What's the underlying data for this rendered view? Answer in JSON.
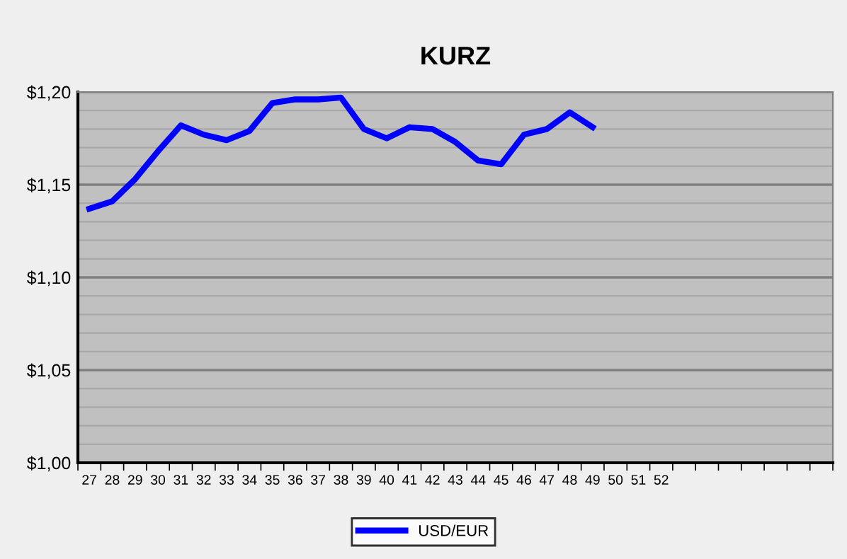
{
  "chart_data": {
    "type": "line",
    "title": "KURZ",
    "categories": [
      "27",
      "28",
      "29",
      "30",
      "31",
      "32",
      "33",
      "34",
      "35",
      "36",
      "37",
      "38",
      "39",
      "40",
      "41",
      "42",
      "43",
      "44",
      "45",
      "46",
      "47",
      "48",
      "49",
      "50",
      "51",
      "52",
      null,
      null,
      null,
      null,
      null,
      null,
      null
    ],
    "series": [
      {
        "name": "USD/EUR",
        "color": "#0000ff",
        "values": [
          1.137,
          1.141,
          1.153,
          1.168,
          1.182,
          1.177,
          1.174,
          1.179,
          1.194,
          1.196,
          1.196,
          1.197,
          1.18,
          1.175,
          1.181,
          1.18,
          1.173,
          1.163,
          1.161,
          1.177,
          1.18,
          1.189,
          1.181,
          null,
          null,
          null,
          null,
          null,
          null,
          null,
          null,
          null,
          null
        ]
      }
    ],
    "ylim": [
      1.0,
      1.2
    ],
    "yticks": [
      {
        "value": 1.0,
        "label": "$1,00"
      },
      {
        "value": 1.01,
        "label": null
      },
      {
        "value": 1.02,
        "label": null
      },
      {
        "value": 1.03,
        "label": null
      },
      {
        "value": 1.04,
        "label": null
      },
      {
        "value": 1.05,
        "label": "$1,05"
      },
      {
        "value": 1.06,
        "label": null
      },
      {
        "value": 1.07,
        "label": null
      },
      {
        "value": 1.08,
        "label": null
      },
      {
        "value": 1.09,
        "label": null
      },
      {
        "value": 1.1,
        "label": "$1,10"
      },
      {
        "value": 1.11,
        "label": null
      },
      {
        "value": 1.12,
        "label": null
      },
      {
        "value": 1.13,
        "label": null
      },
      {
        "value": 1.14,
        "label": null
      },
      {
        "value": 1.15,
        "label": "$1,15"
      },
      {
        "value": 1.16,
        "label": null
      },
      {
        "value": 1.17,
        "label": null
      },
      {
        "value": 1.18,
        "label": null
      },
      {
        "value": 1.19,
        "label": null
      },
      {
        "value": 1.2,
        "label": "$1,20"
      }
    ],
    "grid": "y",
    "legend": "bottom",
    "marker": "none",
    "line_style": "solid"
  }
}
